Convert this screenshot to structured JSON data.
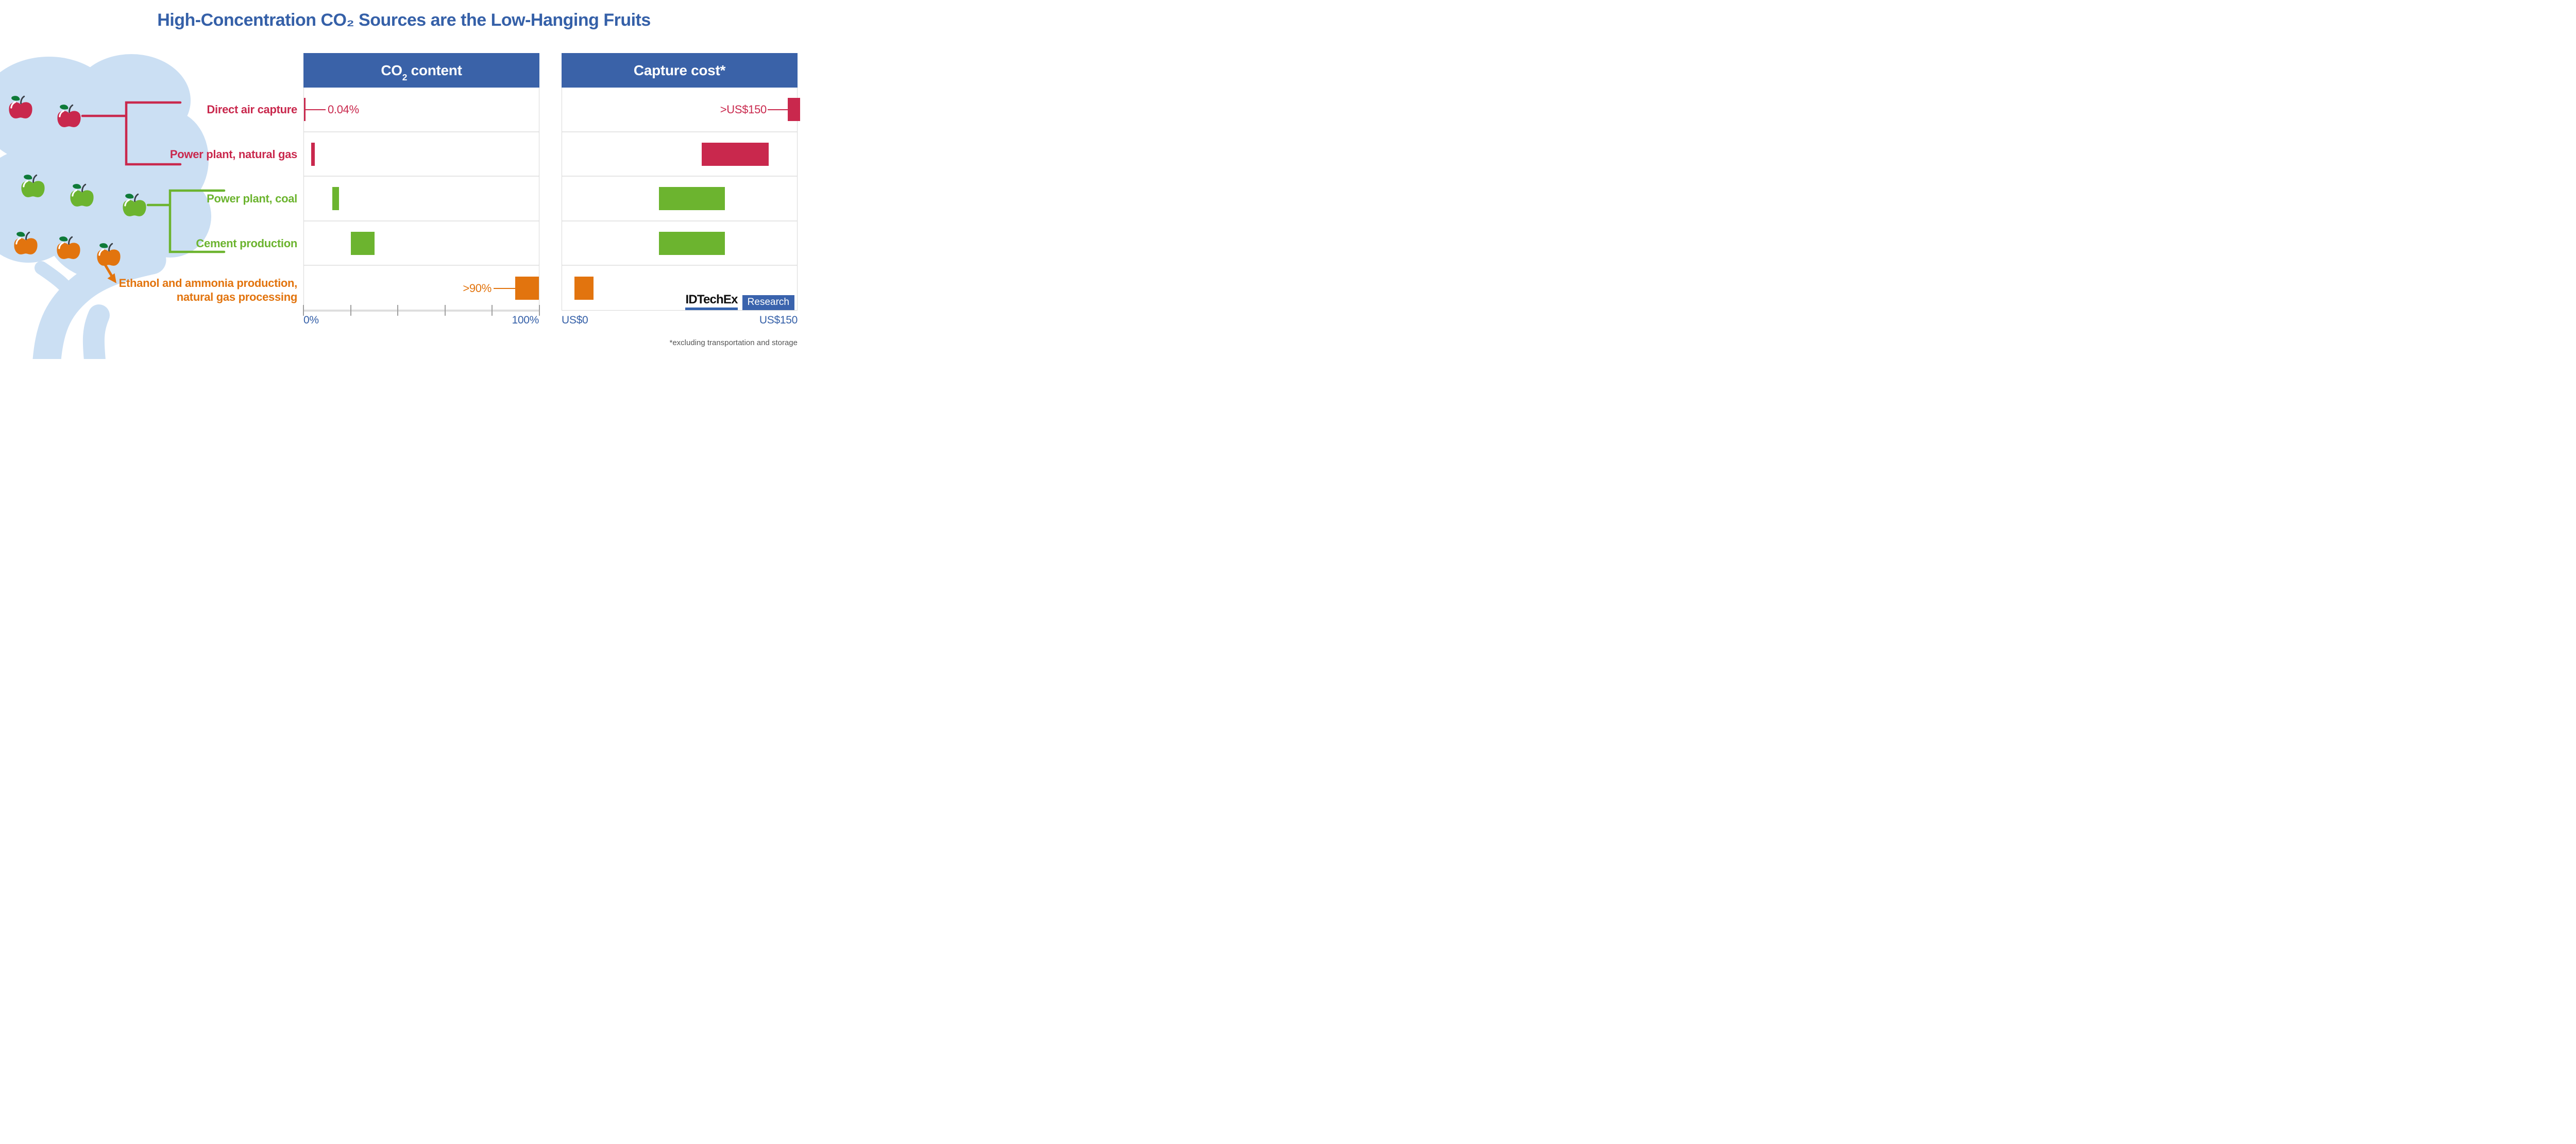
{
  "title": "High-Concentration CO₂ Sources are the Low-Hanging Fruits",
  "panels": [
    {
      "id": "co2",
      "header_prefix": "CO",
      "header_sub": "2",
      "header_suffix": " content"
    },
    {
      "id": "cost",
      "header_text": "Capture cost*"
    }
  ],
  "rows": [
    {
      "label": "Direct air capture",
      "color": "#C9284D"
    },
    {
      "label": "Power plant, natural gas",
      "color": "#C9284D"
    },
    {
      "label": "Power plant, coal",
      "color": "#6CB42F"
    },
    {
      "label": "Cement production",
      "color": "#6CB42F"
    },
    {
      "label_line1": "Ethanol and ammonia production,",
      "label_line2": "natural gas processing",
      "color": "#E2740E"
    }
  ],
  "annotations": {
    "dac_co2": "0.04%",
    "ethanol_co2": ">90%",
    "dac_cost": ">US$150"
  },
  "axes": {
    "co2": {
      "min_label": "0%",
      "max_label": "100%"
    },
    "cost": {
      "min_label": "US$0",
      "max_label": "US$150"
    }
  },
  "footnote": "*excluding transportation and storage",
  "logo": {
    "name": "IDTechEx",
    "division": "Research"
  },
  "colors": {
    "title_blue": "#3560A8",
    "header_blue": "#3A62A8",
    "axis_blue": "#3560A8",
    "crimson": "#C9284D",
    "green": "#6CB42F",
    "orange": "#E2740E",
    "tree_blue": "#CBDFF3",
    "leaf_green": "#0E7A38",
    "stem_gray": "#3B4148",
    "footnote_gray": "#555555"
  },
  "chart_data": {
    "type": "bar",
    "orientation": "horizontal-range",
    "title": "High-Concentration CO₂ Sources are the Low-Hanging Fruits",
    "categories": [
      "Direct air capture",
      "Power plant, natural gas",
      "Power plant, coal",
      "Cement production",
      "Ethanol and ammonia production, natural gas processing"
    ],
    "legend": "none",
    "grid": "row-dividers-only",
    "panels": [
      {
        "id": "co2",
        "title": "CO2 content",
        "axis": {
          "min": 0,
          "max": 100,
          "unit": "%",
          "ticks": [
            0,
            20,
            40,
            60,
            80,
            100
          ],
          "min_label": "0%",
          "max_label": "100%"
        },
        "rows": [
          {
            "id": "dac",
            "category": "Direct air capture",
            "range": [
              0,
              0.04
            ],
            "color": "#C9284D",
            "annotation": "0.04%"
          },
          {
            "id": "gas",
            "category": "Power plant, natural gas",
            "range": [
              3,
              4.5
            ],
            "color": "#C9284D"
          },
          {
            "id": "coal",
            "category": "Power plant, coal",
            "range": [
              12,
              15
            ],
            "color": "#6CB42F"
          },
          {
            "id": "cement",
            "category": "Cement production",
            "range": [
              20,
              30
            ],
            "color": "#6CB42F"
          },
          {
            "id": "ethanol",
            "category": "Ethanol and ammonia production, natural gas processing",
            "range": [
              90,
              100
            ],
            "color": "#E2740E",
            "annotation": ">90%"
          }
        ]
      },
      {
        "id": "cost",
        "title": "Capture cost*",
        "axis": {
          "min": 0,
          "max": 150,
          "unit": "US$ per tonne",
          "ticks": [],
          "min_label": "US$0",
          "max_label": "US$150"
        },
        "rows": [
          {
            "id": "dac",
            "category": "Direct air capture",
            "range": [
              144,
              152
            ],
            "color": "#C9284D",
            "annotation": ">US$150",
            "note": "clipped at axis max, value exceeds US$150"
          },
          {
            "id": "gas",
            "category": "Power plant, natural gas",
            "range": [
              89,
              132
            ],
            "color": "#C9284D"
          },
          {
            "id": "coal",
            "category": "Power plant, coal",
            "range": [
              62,
              104
            ],
            "color": "#6CB42F"
          },
          {
            "id": "cement",
            "category": "Cement production",
            "range": [
              62,
              104
            ],
            "color": "#6CB42F"
          },
          {
            "id": "ethanol",
            "category": "Ethanol and ammonia production, natural gas processing",
            "range": [
              8,
              20
            ],
            "color": "#E2740E"
          }
        ]
      }
    ]
  }
}
